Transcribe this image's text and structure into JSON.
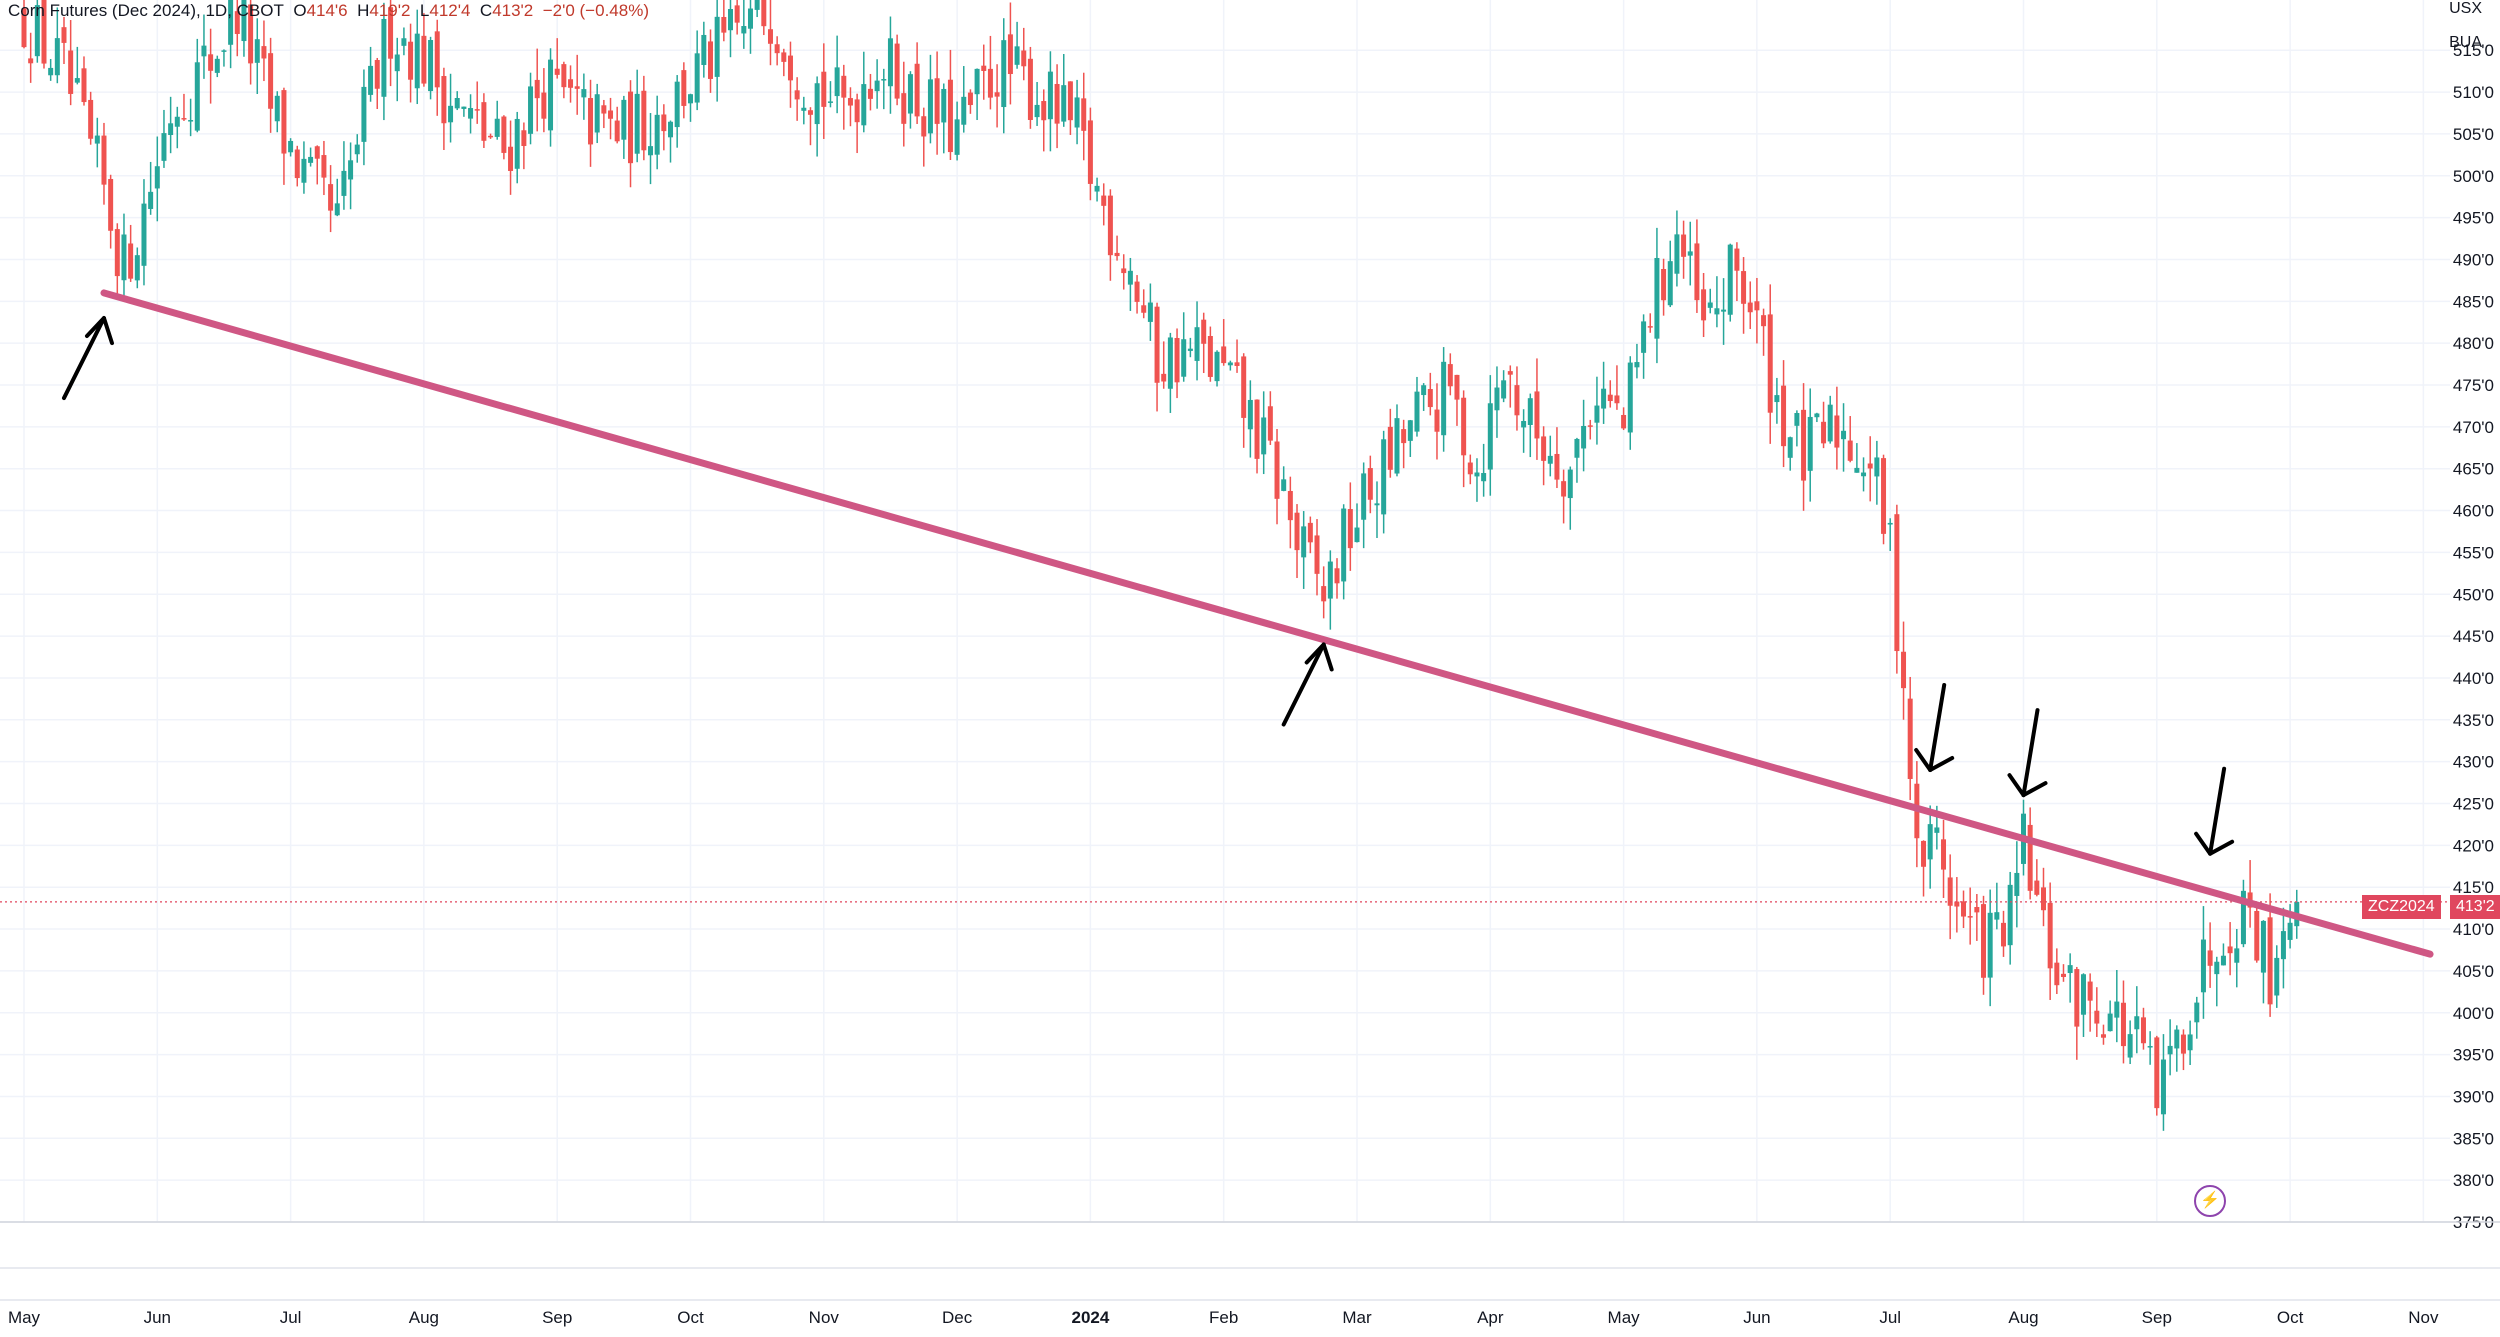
{
  "header": {
    "symbol": "Corn Futures (Dec 2024), 1D, CBOT",
    "o_label": "O",
    "o_value": "414'6",
    "h_label": "H",
    "h_value": "419'2",
    "l_label": "L",
    "l_value": "412'4",
    "c_label": "C",
    "c_value": "413'2",
    "change": "−2'0 (−0.48%)"
  },
  "units": {
    "currency": "USX",
    "unit": "BUA"
  },
  "last_price": {
    "ticker": "ZCZ2024",
    "value": "413'2",
    "numeric": 413.25,
    "color": "#e0475e"
  },
  "colors": {
    "up": "#26a69a",
    "down": "#ef5350",
    "trendline": "#cf5784",
    "arrows": "#000000",
    "grid": "#f0f3fa",
    "alert_icon": "#8e44ad"
  },
  "icons": {
    "alert": "lightning-icon"
  },
  "chart_data": {
    "type": "candlestick",
    "title": "Corn Futures (Dec 2024), 1D, CBOT",
    "ylim": [
      375,
      521
    ],
    "y_ticks": [
      {
        "v": 375,
        "label": "375'0"
      },
      {
        "v": 380,
        "label": "380'0"
      },
      {
        "v": 385,
        "label": "385'0"
      },
      {
        "v": 390,
        "label": "390'0"
      },
      {
        "v": 395,
        "label": "395'0"
      },
      {
        "v": 400,
        "label": "400'0"
      },
      {
        "v": 405,
        "label": "405'0"
      },
      {
        "v": 410,
        "label": "410'0"
      },
      {
        "v": 415,
        "label": "415'0"
      },
      {
        "v": 420,
        "label": "420'0"
      },
      {
        "v": 425,
        "label": "425'0"
      },
      {
        "v": 430,
        "label": "430'0"
      },
      {
        "v": 435,
        "label": "435'0"
      },
      {
        "v": 440,
        "label": "440'0"
      },
      {
        "v": 445,
        "label": "445'0"
      },
      {
        "v": 450,
        "label": "450'0"
      },
      {
        "v": 455,
        "label": "455'0"
      },
      {
        "v": 460,
        "label": "460'0"
      },
      {
        "v": 465,
        "label": "465'0"
      },
      {
        "v": 470,
        "label": "470'0"
      },
      {
        "v": 475,
        "label": "475'0"
      },
      {
        "v": 480,
        "label": "480'0"
      },
      {
        "v": 485,
        "label": "485'0"
      },
      {
        "v": 490,
        "label": "490'0"
      },
      {
        "v": 495,
        "label": "495'0"
      },
      {
        "v": 500,
        "label": "500'0"
      },
      {
        "v": 505,
        "label": "505'0"
      },
      {
        "v": 510,
        "label": "510'0"
      },
      {
        "v": 515,
        "label": "515'0"
      }
    ],
    "x_ticks": [
      {
        "m": 0,
        "label": "May",
        "bold": false
      },
      {
        "m": 1,
        "label": "Jun",
        "bold": false
      },
      {
        "m": 2,
        "label": "Jul",
        "bold": false
      },
      {
        "m": 3,
        "label": "Aug",
        "bold": false
      },
      {
        "m": 4,
        "label": "Sep",
        "bold": false
      },
      {
        "m": 5,
        "label": "Oct",
        "bold": false
      },
      {
        "m": 6,
        "label": "Nov",
        "bold": false
      },
      {
        "m": 7,
        "label": "Dec",
        "bold": false
      },
      {
        "m": 8,
        "label": "2024",
        "bold": true
      },
      {
        "m": 9,
        "label": "Feb",
        "bold": false
      },
      {
        "m": 10,
        "label": "Mar",
        "bold": false
      },
      {
        "m": 11,
        "label": "Apr",
        "bold": false
      },
      {
        "m": 12,
        "label": "May",
        "bold": false
      },
      {
        "m": 13,
        "label": "Jun",
        "bold": false
      },
      {
        "m": 14,
        "label": "Jul",
        "bold": false
      },
      {
        "m": 15,
        "label": "Aug",
        "bold": false
      },
      {
        "m": 16,
        "label": "Sep",
        "bold": false
      },
      {
        "m": 17,
        "label": "Oct",
        "bold": false
      },
      {
        "m": 18,
        "label": "Nov",
        "bold": false
      }
    ],
    "close_path": [
      [
        0.0,
        519
      ],
      [
        0.3,
        512
      ],
      [
        0.6,
        498
      ],
      [
        0.75,
        489
      ],
      [
        0.9,
        496
      ],
      [
        1.1,
        508
      ],
      [
        1.4,
        514
      ],
      [
        1.6,
        520
      ],
      [
        1.85,
        508
      ],
      [
        2.1,
        500
      ],
      [
        2.35,
        494
      ],
      [
        2.5,
        504
      ],
      [
        2.75,
        518
      ],
      [
        3.0,
        514
      ],
      [
        3.3,
        507
      ],
      [
        3.6,
        503
      ],
      [
        3.9,
        511
      ],
      [
        4.2,
        507
      ],
      [
        4.5,
        505
      ],
      [
        4.8,
        508
      ],
      [
        5.1,
        513
      ],
      [
        5.35,
        517
      ],
      [
        5.6,
        520
      ],
      [
        5.85,
        512
      ],
      [
        6.15,
        508
      ],
      [
        6.4,
        514
      ],
      [
        6.7,
        509
      ],
      [
        7.0,
        505
      ],
      [
        7.3,
        513
      ],
      [
        7.6,
        510
      ],
      [
        7.9,
        505
      ],
      [
        8.05,
        498
      ],
      [
        8.3,
        489
      ],
      [
        8.5,
        478
      ],
      [
        8.8,
        479
      ],
      [
        9.0,
        476
      ],
      [
        9.2,
        471
      ],
      [
        9.45,
        462
      ],
      [
        9.55,
        456
      ],
      [
        9.75,
        450
      ],
      [
        9.95,
        458
      ],
      [
        10.2,
        465
      ],
      [
        10.45,
        471
      ],
      [
        10.7,
        474
      ],
      [
        10.9,
        465
      ],
      [
        11.1,
        477
      ],
      [
        11.3,
        470
      ],
      [
        11.6,
        465
      ],
      [
        11.8,
        475
      ],
      [
        12.0,
        470
      ],
      [
        12.2,
        484
      ],
      [
        12.4,
        493
      ],
      [
        12.6,
        481
      ],
      [
        12.85,
        489
      ],
      [
        13.0,
        482
      ],
      [
        13.15,
        473
      ],
      [
        13.35,
        466
      ],
      [
        13.6,
        470
      ],
      [
        13.85,
        466
      ],
      [
        14.0,
        455
      ],
      [
        14.1,
        440
      ],
      [
        14.2,
        418
      ],
      [
        14.35,
        421
      ],
      [
        14.5,
        412
      ],
      [
        14.7,
        408
      ],
      [
        14.9,
        411
      ],
      [
        15.0,
        420
      ],
      [
        15.15,
        409
      ],
      [
        15.35,
        402
      ],
      [
        15.6,
        401
      ],
      [
        15.9,
        395
      ],
      [
        16.0,
        389
      ],
      [
        16.2,
        399
      ],
      [
        16.45,
        410
      ],
      [
        16.7,
        413
      ],
      [
        16.85,
        405
      ],
      [
        17.0,
        414
      ],
      [
        17.05,
        413.25
      ]
    ],
    "trendline": {
      "start": {
        "m": 0.6,
        "v": 486
      },
      "end": {
        "m": 18.05,
        "v": 407
      },
      "color": "#cf5784"
    },
    "annotation_arrows": [
      {
        "tip_m": 0.6,
        "tip_v": 483,
        "direction": "up"
      },
      {
        "tip_m": 9.75,
        "tip_v": 444,
        "direction": "up"
      },
      {
        "tip_m": 14.3,
        "tip_v": 429,
        "direction": "down"
      },
      {
        "tip_m": 15.0,
        "tip_v": 426,
        "direction": "down"
      },
      {
        "tip_m": 16.4,
        "tip_v": 419,
        "direction": "down"
      }
    ],
    "last_value": 413.25,
    "legend": "top-left",
    "grid": true
  }
}
